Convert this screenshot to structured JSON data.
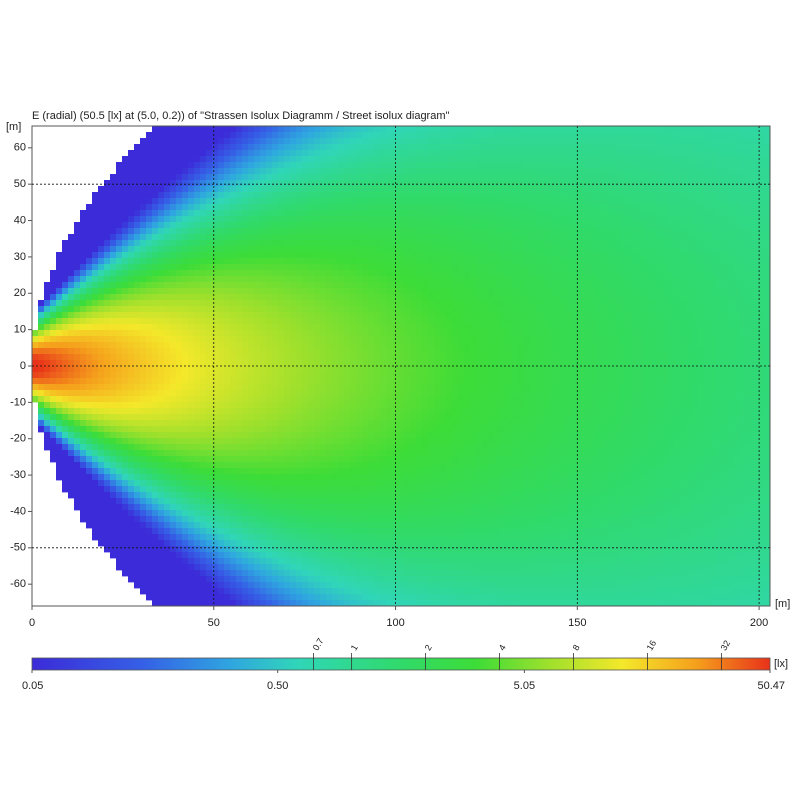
{
  "chart_data": {
    "type": "contour",
    "title": "E (radial) (50.5 [lx] at (5.0, 0.2)) of \"Strassen Isolux Diagramm / Street isolux diagram\"",
    "x_label": "[m]",
    "y_label": "[m]",
    "xlim": [
      0,
      203
    ],
    "ylim": [
      -66,
      66
    ],
    "xticks": [
      0,
      50,
      100,
      150,
      200
    ],
    "yticks": [
      -60,
      -50,
      -40,
      -30,
      -20,
      -10,
      0,
      10,
      20,
      30,
      40,
      50,
      60
    ],
    "xgrid": [
      50,
      100,
      150,
      200
    ],
    "ygrid": [
      -50,
      0,
      50
    ],
    "colorbar": {
      "scale": "log",
      "lim": [
        0.05,
        50.47
      ],
      "ticks": [
        0.05,
        {
          "value": 0.5,
          "label": "0.50"
        },
        5.05,
        50.47
      ],
      "levels": [
        0.7,
        1,
        2,
        4,
        8,
        16,
        32
      ],
      "unit": "[lx]"
    }
  }
}
